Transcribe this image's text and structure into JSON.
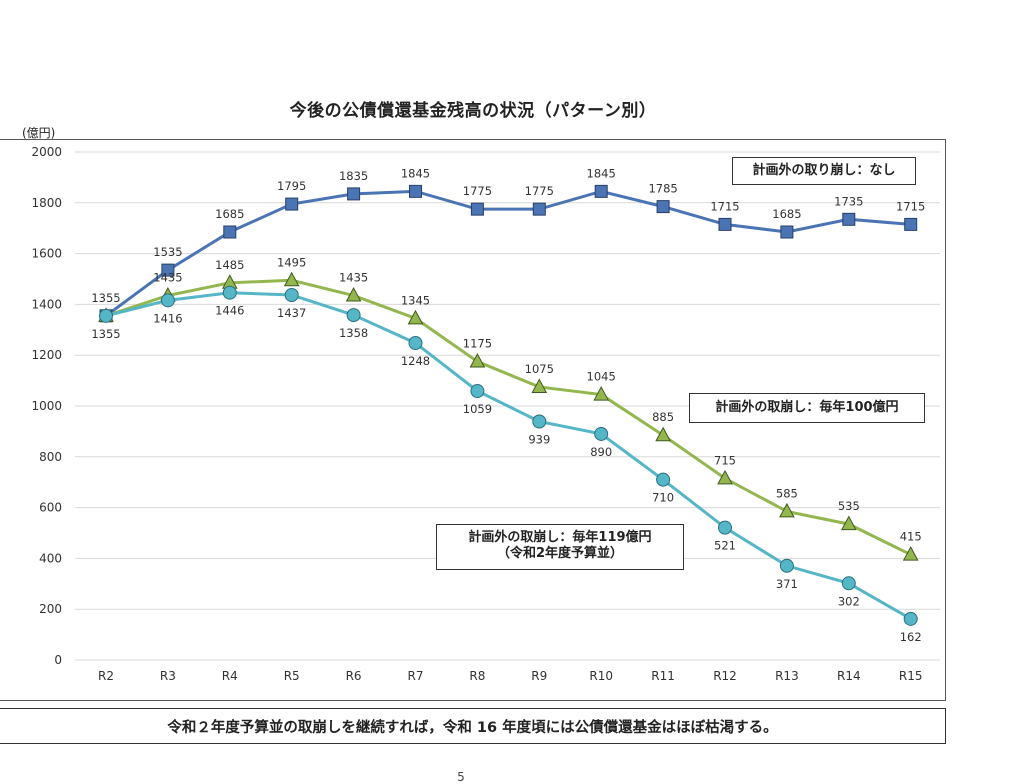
{
  "page": {
    "title": "今後の公債償還基金残高の状況（パターン別）",
    "unit": "(億円)",
    "footer": "令和２年度予算並の取崩しを継続すれば，令和 16 年度頃には公債償還基金はほぼ枯渇する。",
    "page_number": "5"
  },
  "legend": {
    "none": "計画外の取り崩し：なし",
    "per100": "計画外の取崩し：毎年100億円",
    "per119_line1": "計画外の取崩し：毎年119億円",
    "per119_line2": "（令和2年度予算並）"
  },
  "colors": {
    "none": "#4a74b4",
    "per100": "#93b64e",
    "per119": "#55b6c8",
    "grid": "#d9d9d9"
  },
  "chart_data": {
    "type": "line",
    "title": "今後の公債償還基金残高の状況（パターン別）",
    "ylabel": "(億円)",
    "xlabel": "",
    "ylim": [
      0,
      2000
    ],
    "yticks": [
      0,
      200,
      400,
      600,
      800,
      1000,
      1200,
      1400,
      1600,
      1800,
      2000
    ],
    "grid": true,
    "categories": [
      "R2",
      "R3",
      "R4",
      "R5",
      "R6",
      "R7",
      "R8",
      "R9",
      "R10",
      "R11",
      "R12",
      "R13",
      "R14",
      "R15"
    ],
    "series": [
      {
        "name": "計画外の取り崩し：なし",
        "marker": "square",
        "values": [
          1355,
          1535,
          1685,
          1795,
          1835,
          1845,
          1775,
          1775,
          1845,
          1785,
          1715,
          1685,
          1735,
          1715
        ]
      },
      {
        "name": "計画外の取崩し：毎年100億円",
        "marker": "triangle",
        "values": [
          1355,
          1435,
          1485,
          1495,
          1435,
          1345,
          1175,
          1075,
          1045,
          885,
          715,
          585,
          535,
          415
        ]
      },
      {
        "name": "計画外の取崩し：毎年119億円（令和2年度予算並）",
        "marker": "circle",
        "values": [
          1355,
          1416,
          1446,
          1437,
          1358,
          1248,
          1059,
          939,
          890,
          710,
          521,
          371,
          302,
          162
        ]
      }
    ]
  }
}
